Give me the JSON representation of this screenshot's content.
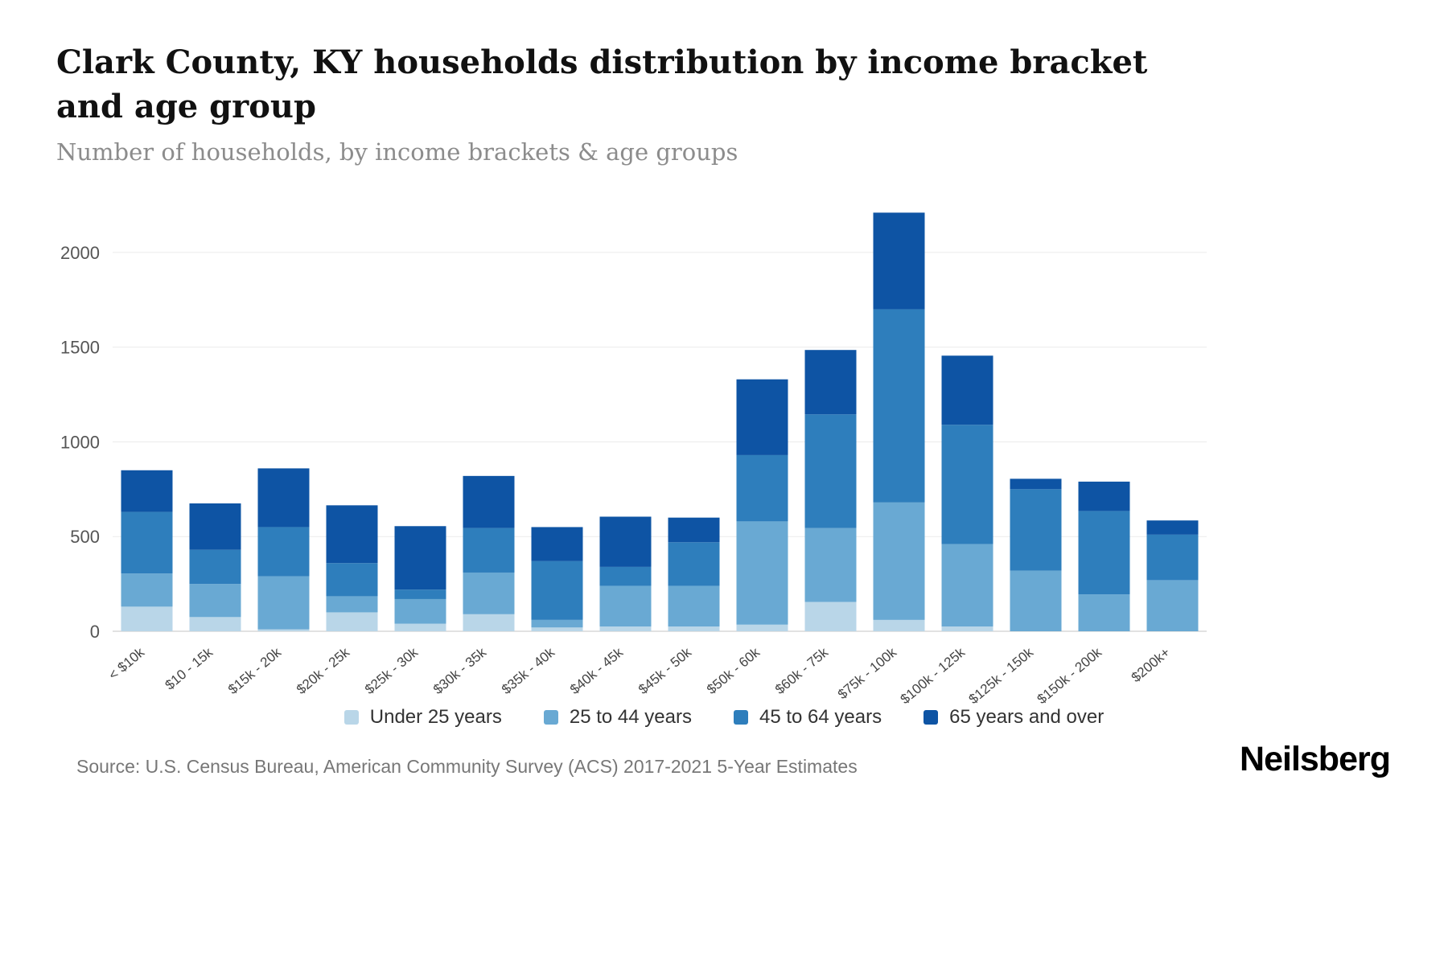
{
  "header": {
    "title": "Clark County, KY households distribution by income bracket and age group",
    "subtitle": "Number of households, by income brackets & age groups"
  },
  "chart_data": {
    "type": "bar",
    "stacked": true,
    "title": "Clark County, KY households distribution by income bracket and age group",
    "xlabel": "",
    "ylabel": "Number of households",
    "categories": [
      "< $10k",
      "$10 - 15k",
      "$15k - 20k",
      "$20k - 25k",
      "$25k - 30k",
      "$30k - 35k",
      "$35k - 40k",
      "$40k - 45k",
      "$45k - 50k",
      "$50k - 60k",
      "$60k - 75k",
      "$75k - 100k",
      "$100k - 125k",
      "$125k - 150k",
      "$150k - 200k",
      "$200k+"
    ],
    "series": [
      {
        "name": "Under 25 years",
        "color": "#b9d6e8",
        "values": [
          130,
          75,
          10,
          100,
          40,
          90,
          20,
          25,
          25,
          35,
          155,
          60,
          25,
          0,
          0,
          0
        ]
      },
      {
        "name": "25 to 44 years",
        "color": "#69a9d3",
        "values": [
          175,
          175,
          280,
          85,
          130,
          220,
          40,
          215,
          215,
          545,
          390,
          620,
          435,
          320,
          195,
          270
        ]
      },
      {
        "name": "45 to 64 years",
        "color": "#2e7ebc",
        "values": [
          325,
          180,
          260,
          175,
          50,
          235,
          310,
          100,
          230,
          350,
          600,
          1020,
          630,
          430,
          440,
          240
        ]
      },
      {
        "name": "65 years and over",
        "color": "#0e54a4",
        "values": [
          220,
          245,
          310,
          305,
          335,
          275,
          180,
          265,
          130,
          400,
          340,
          510,
          365,
          55,
          155,
          75
        ]
      }
    ],
    "yticks": [
      0,
      500,
      1000,
      1500,
      2000
    ],
    "ylim": [
      0,
      2250
    ],
    "grid": true,
    "legend_position": "bottom"
  },
  "footer": {
    "source": "Source: U.S. Census Bureau, American Community Survey (ACS) 2017-2021 5-Year Estimates",
    "brand": "Neilsberg"
  }
}
